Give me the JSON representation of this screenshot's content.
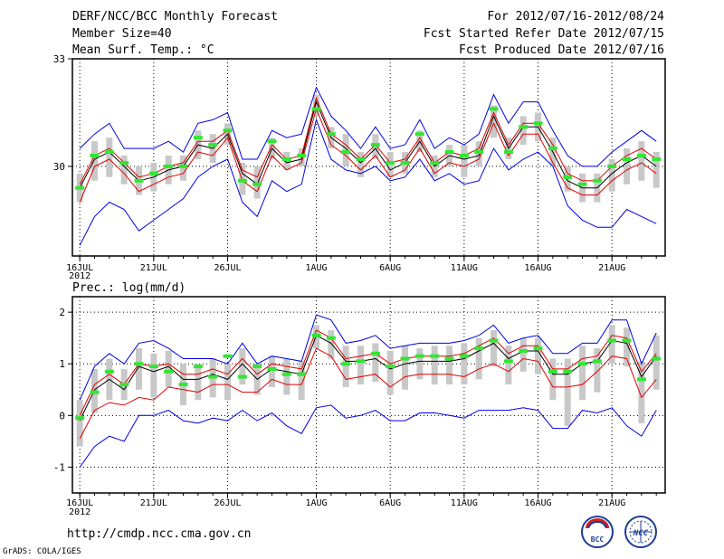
{
  "header": {
    "title": "DERF/NCC/BCC Monthly Forecast",
    "member_size": "Member Size=40",
    "variable": "Mean Surf. Temp.: °C",
    "period": "For 2012/07/16-2012/08/24",
    "start_date": "Fcst Started Refer Date 2012/07/15",
    "produced_date": "Fcst Produced Date 2012/07/16"
  },
  "footer": {
    "url": "http://cmdp.ncc.cma.gov.cn",
    "credit": "GrADS: COLA/IGES",
    "logo_bcc": "BCC",
    "logo_ncc": "NCC"
  },
  "colors": {
    "mean": "#000000",
    "spread_inner": "#e00000",
    "spread_outer": "#0000e0",
    "bar": "#c8c8c8",
    "marker": "#32e632"
  },
  "chart_data": [
    {
      "type": "line",
      "title": "Mean Surf. Temp.: °C",
      "x_ticks": [
        {
          "label": "16JUL",
          "sublabel": "2012",
          "day": 0
        },
        {
          "label": "21JUL",
          "day": 5
        },
        {
          "label": "26JUL",
          "day": 10
        },
        {
          "label": "1AUG",
          "day": 16
        },
        {
          "label": "6AUG",
          "day": 21
        },
        {
          "label": "11AUG",
          "day": 26
        },
        {
          "label": "16AUG",
          "day": 31
        },
        {
          "label": "21AUG",
          "day": 36
        }
      ],
      "xlim": [
        -0.5,
        39.6
      ],
      "ylim": [
        27.5,
        33
      ],
      "yticks": [
        30,
        33
      ],
      "series": [
        {
          "name": "ensemble mean",
          "role": "mean",
          "values": [
            29.4,
            30.2,
            30.4,
            30.0,
            29.6,
            29.7,
            29.9,
            30.0,
            30.6,
            30.5,
            30.9,
            29.8,
            29.5,
            30.5,
            30.1,
            30.2,
            31.8,
            30.8,
            30.5,
            30.1,
            30.5,
            29.9,
            30.1,
            30.7,
            30.0,
            30.3,
            30.2,
            30.3,
            31.4,
            30.5,
            31.1,
            31.1,
            30.4,
            29.6,
            29.4,
            29.4,
            29.8,
            30.1,
            30.3,
            30.0
          ]
        },
        {
          "name": "upper inner spread",
          "role": "inner",
          "values": [
            29.5,
            30.3,
            30.5,
            30.1,
            29.7,
            29.8,
            30.0,
            30.1,
            30.7,
            30.7,
            31.0,
            29.9,
            29.7,
            30.6,
            30.2,
            30.3,
            31.9,
            30.9,
            30.6,
            30.2,
            30.6,
            30.1,
            30.2,
            30.8,
            30.1,
            30.4,
            30.3,
            30.5,
            31.5,
            30.6,
            31.2,
            31.2,
            30.6,
            29.8,
            29.6,
            29.6,
            30.0,
            30.3,
            30.5,
            30.2
          ]
        },
        {
          "name": "lower inner spread",
          "role": "inner",
          "values": [
            29.0,
            30.0,
            30.2,
            29.8,
            29.3,
            29.5,
            29.7,
            29.8,
            30.4,
            30.3,
            30.8,
            29.6,
            29.3,
            30.3,
            29.9,
            30.1,
            31.6,
            30.6,
            30.3,
            29.9,
            30.3,
            29.7,
            29.9,
            30.5,
            29.8,
            30.1,
            30.0,
            30.2,
            31.2,
            30.3,
            30.9,
            30.9,
            30.1,
            29.4,
            29.2,
            29.2,
            29.6,
            29.9,
            30.1,
            29.8
          ]
        },
        {
          "name": "upper outer spread",
          "role": "outer",
          "values": [
            30.5,
            30.9,
            31.2,
            30.5,
            30.5,
            30.5,
            30.7,
            30.4,
            31.2,
            31.3,
            31.5,
            30.2,
            30.2,
            31.0,
            30.8,
            30.9,
            32.2,
            31.4,
            31.0,
            30.5,
            31.1,
            30.5,
            30.6,
            31.3,
            30.5,
            30.8,
            30.6,
            30.9,
            32.0,
            31.2,
            31.8,
            31.8,
            31.0,
            30.3,
            30.0,
            30.0,
            30.4,
            30.7,
            31.0,
            30.7
          ]
        },
        {
          "name": "lower outer spread",
          "role": "outer",
          "values": [
            27.8,
            28.6,
            29.0,
            28.8,
            28.2,
            28.5,
            28.8,
            29.1,
            29.7,
            30.0,
            30.2,
            29.0,
            28.6,
            29.6,
            29.3,
            29.5,
            31.3,
            30.2,
            29.9,
            29.8,
            30.0,
            29.6,
            29.7,
            30.2,
            29.6,
            29.8,
            29.5,
            29.6,
            30.5,
            29.9,
            30.2,
            30.4,
            30.0,
            28.9,
            28.5,
            28.3,
            28.3,
            28.8,
            28.6,
            28.4
          ]
        }
      ],
      "boxes": {
        "low": [
          29.0,
          29.6,
          29.7,
          29.5,
          29.2,
          29.3,
          29.5,
          29.6,
          30.2,
          30.1,
          30.6,
          29.2,
          29.1,
          30.2,
          29.9,
          30.0,
          31.4,
          30.5,
          30.0,
          29.7,
          30.2,
          29.7,
          29.8,
          30.4,
          29.7,
          30.0,
          29.7,
          30.0,
          30.8,
          30.2,
          30.6,
          30.7,
          30.0,
          29.3,
          29.0,
          29.0,
          29.3,
          29.5,
          29.6,
          29.4
        ],
        "high": [
          29.8,
          30.7,
          30.8,
          30.3,
          30.0,
          30.1,
          30.3,
          30.3,
          31.0,
          30.9,
          31.2,
          30.1,
          30.0,
          30.8,
          30.4,
          30.5,
          32.0,
          31.1,
          30.9,
          30.4,
          30.9,
          30.4,
          30.4,
          31.0,
          30.3,
          30.6,
          30.6,
          30.7,
          31.7,
          30.8,
          31.4,
          31.5,
          30.8,
          30.0,
          29.8,
          29.8,
          30.2,
          30.5,
          30.7,
          30.4
        ]
      },
      "markers": [
        29.4,
        30.3,
        30.4,
        30.1,
        29.6,
        29.8,
        30.0,
        30.0,
        30.8,
        30.6,
        31.0,
        29.6,
        29.5,
        30.7,
        30.2,
        30.3,
        31.6,
        30.9,
        30.4,
        30.2,
        30.6,
        30.1,
        30.1,
        30.9,
        30.1,
        30.4,
        30.3,
        30.4,
        31.6,
        30.4,
        31.1,
        31.2,
        30.5,
        29.7,
        29.5,
        29.6,
        30.0,
        30.2,
        30.3,
        30.2
      ]
    },
    {
      "type": "line",
      "title": "Prec.: log(mm/d)",
      "x_ticks": [
        {
          "label": "16JUL",
          "sublabel": "2012",
          "day": 0
        },
        {
          "label": "21JUL",
          "day": 5
        },
        {
          "label": "26JUL",
          "day": 10
        },
        {
          "label": "1AUG",
          "day": 16
        },
        {
          "label": "6AUG",
          "day": 21
        },
        {
          "label": "11AUG",
          "day": 26
        },
        {
          "label": "16AUG",
          "day": 31
        },
        {
          "label": "21AUG",
          "day": 36
        }
      ],
      "xlim": [
        -0.5,
        39.6
      ],
      "ylim": [
        -1.5,
        2.3
      ],
      "yticks": [
        -1,
        0,
        1,
        2
      ],
      "series": [
        {
          "name": "ensemble mean",
          "role": "mean",
          "values": [
            -0.1,
            0.5,
            0.7,
            0.5,
            0.95,
            0.85,
            0.95,
            0.7,
            0.7,
            0.8,
            0.7,
            1.0,
            0.7,
            0.9,
            0.85,
            0.8,
            1.55,
            1.4,
            1.05,
            1.05,
            1.1,
            0.9,
            1.0,
            1.05,
            1.05,
            1.05,
            1.1,
            1.25,
            1.4,
            1.1,
            1.25,
            1.25,
            0.8,
            0.8,
            1.0,
            1.05,
            1.45,
            1.4,
            0.75,
            1.15
          ]
        },
        {
          "name": "upper inner spread",
          "role": "inner",
          "values": [
            0.0,
            0.6,
            0.8,
            0.6,
            1.0,
            0.95,
            1.0,
            0.8,
            0.8,
            0.9,
            0.8,
            1.1,
            0.8,
            1.0,
            0.95,
            0.9,
            1.65,
            1.5,
            1.1,
            1.15,
            1.2,
            1.0,
            1.1,
            1.15,
            1.15,
            1.15,
            1.2,
            1.35,
            1.5,
            1.2,
            1.35,
            1.35,
            0.9,
            0.9,
            1.1,
            1.15,
            1.55,
            1.5,
            0.85,
            1.2
          ]
        },
        {
          "name": "lower inner spread",
          "role": "inner",
          "values": [
            -0.45,
            0.1,
            0.25,
            0.2,
            0.35,
            0.3,
            0.55,
            0.5,
            0.45,
            0.6,
            0.6,
            0.45,
            0.45,
            0.7,
            0.6,
            0.6,
            1.3,
            1.15,
            0.7,
            0.75,
            0.8,
            0.55,
            0.75,
            0.8,
            0.8,
            0.8,
            0.75,
            0.9,
            1.0,
            0.85,
            1.1,
            1.05,
            0.55,
            0.55,
            0.6,
            0.85,
            1.15,
            1.1,
            0.35,
            0.7
          ]
        },
        {
          "name": "upper outer spread",
          "role": "outer",
          "values": [
            0.3,
            0.95,
            1.2,
            1.0,
            1.4,
            1.45,
            1.3,
            1.1,
            1.1,
            1.1,
            1.0,
            1.4,
            1.0,
            1.15,
            1.1,
            1.05,
            1.95,
            1.85,
            1.4,
            1.45,
            1.55,
            1.3,
            1.35,
            1.4,
            1.4,
            1.4,
            1.45,
            1.55,
            1.75,
            1.4,
            1.5,
            1.55,
            1.2,
            1.2,
            1.4,
            1.4,
            1.85,
            1.85,
            1.0,
            1.6
          ]
        },
        {
          "name": "lower outer spread",
          "role": "outer",
          "values": [
            -1.0,
            -0.6,
            -0.4,
            -0.5,
            0.0,
            0.0,
            0.1,
            -0.1,
            -0.15,
            -0.05,
            -0.1,
            0.1,
            -0.1,
            0.05,
            -0.2,
            -0.35,
            0.15,
            0.2,
            -0.05,
            0.0,
            0.1,
            -0.1,
            -0.1,
            0.05,
            0.05,
            0.0,
            -0.05,
            0.1,
            0.1,
            0.1,
            0.15,
            0.1,
            -0.25,
            -0.25,
            0.1,
            0.05,
            0.15,
            -0.2,
            -0.4,
            0.1
          ]
        }
      ],
      "boxes": {
        "low": [
          -0.6,
          0.05,
          0.3,
          0.3,
          0.5,
          0.35,
          0.55,
          0.2,
          0.3,
          0.35,
          0.3,
          0.6,
          0.4,
          0.55,
          0.4,
          0.3,
          1.3,
          1.1,
          0.55,
          0.6,
          0.65,
          0.4,
          0.5,
          0.7,
          0.6,
          0.6,
          0.6,
          0.7,
          0.95,
          0.6,
          0.85,
          0.8,
          0.3,
          -0.2,
          0.3,
          0.45,
          1.0,
          0.95,
          -0.15,
          0.5
        ],
        "high": [
          0.3,
          0.9,
          1.1,
          0.9,
          1.3,
          1.2,
          1.25,
          1.0,
          1.0,
          1.1,
          1.0,
          1.3,
          1.0,
          1.15,
          1.1,
          1.05,
          1.75,
          1.65,
          1.35,
          1.35,
          1.4,
          1.25,
          1.35,
          1.3,
          1.35,
          1.35,
          1.4,
          1.5,
          1.65,
          1.35,
          1.5,
          1.5,
          1.1,
          1.1,
          1.35,
          1.3,
          1.75,
          1.7,
          1.05,
          1.55
        ]
      },
      "markers": [
        -0.05,
        0.45,
        0.85,
        0.6,
        1.0,
        0.95,
        0.85,
        0.6,
        0.95,
        0.75,
        1.15,
        0.75,
        0.95,
        0.9,
        0.8,
        0.8,
        1.55,
        1.5,
        1.0,
        1.05,
        1.2,
        0.95,
        1.1,
        1.15,
        1.15,
        1.1,
        1.15,
        1.3,
        1.45,
        1.05,
        1.25,
        1.3,
        0.85,
        0.85,
        1.0,
        1.05,
        1.45,
        1.45,
        0.7,
        1.1
      ]
    }
  ]
}
